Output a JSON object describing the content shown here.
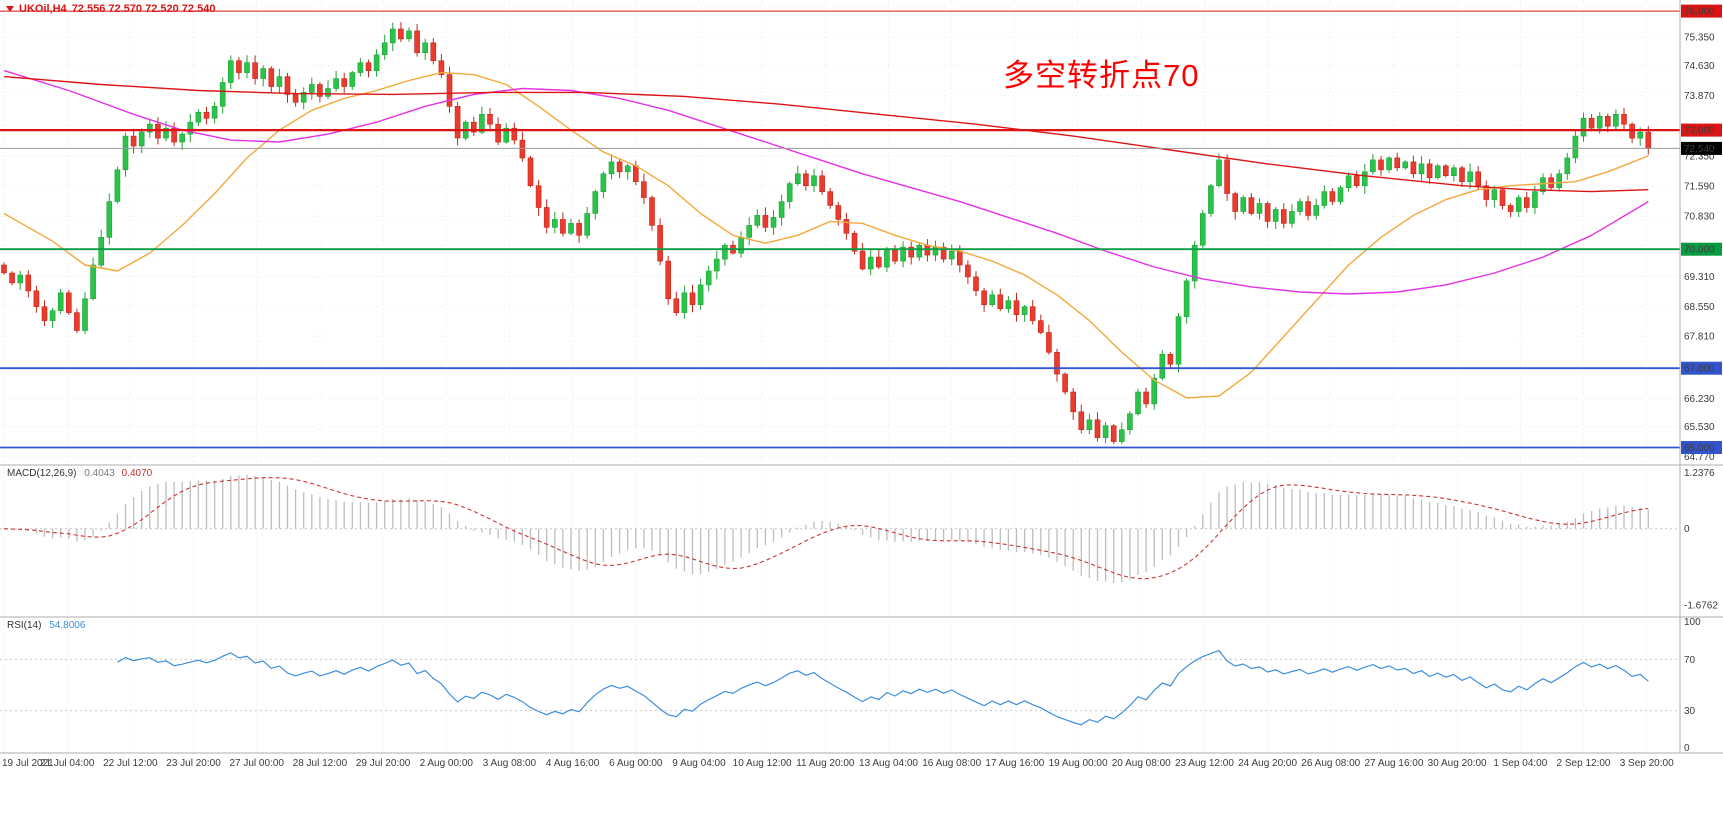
{
  "symbol_bar": {
    "symbol": "UKOil,H4",
    "ohlc": "72.556 72.570 72.520 72.540"
  },
  "annotation": {
    "text": "多空转折点70",
    "color": "#FF0000"
  },
  "colors": {
    "up": "#1fa33a",
    "up_fill": "#2bc34a",
    "down": "#c2271c",
    "down_fill": "#ea3b2e",
    "ma_fast": "#f2a93b",
    "ma_mid": "#e531e5",
    "ma_slow": "#dc1414",
    "grid": "#ebebeb",
    "panel_border": "#aeaeae",
    "macd_hist": "#bdbdbd",
    "macd_signal": "#cc3333",
    "rsi_line": "#3e8ede",
    "price_line": "#9a9a9a",
    "axis_text": "#3c3c3c",
    "badge_text": "#ffffff"
  },
  "price_scale": {
    "ticks": [
      "75.350",
      "74.630",
      "73.870",
      "72.350",
      "71.590",
      "70.830",
      "69.310",
      "68.550",
      "67.810",
      "66.230",
      "65.530",
      "64.770"
    ],
    "badges": [
      {
        "label": "76.000",
        "value": 76.0,
        "bg": "#dc1414"
      },
      {
        "label": "73.000",
        "value": 73.0,
        "bg": "#dc1414"
      },
      {
        "label": "70.000",
        "value": 70.0,
        "bg": "#089b42"
      },
      {
        "label": "67.000",
        "value": 67.0,
        "bg": "#3355cc"
      },
      {
        "label": "65.000",
        "value": 65.0,
        "bg": "#3355cc"
      }
    ],
    "current": {
      "label": "72.540",
      "value": 72.54,
      "bg": "#000000"
    }
  },
  "chart_data": {
    "type": "candlestick",
    "title": "UKOil H4 candlestick chart with MACD and RSI",
    "symbol": "UKOil",
    "timeframe": "H4",
    "y_range": [
      64.56,
      76.28
    ],
    "grid_values": [
      76.11,
      75.35,
      74.63,
      73.87,
      73.11,
      72.35,
      71.59,
      70.83,
      70.07,
      69.31,
      68.55,
      67.81,
      67.05,
      66.23,
      65.53,
      64.77
    ],
    "first_open": 69.6,
    "closes": [
      69.4,
      69.15,
      69.35,
      68.95,
      68.55,
      68.2,
      68.45,
      68.9,
      68.4,
      67.95,
      68.75,
      69.6,
      70.3,
      71.2,
      72.0,
      72.85,
      72.6,
      72.95,
      73.15,
      72.8,
      73.05,
      72.7,
      72.9,
      73.2,
      73.45,
      73.3,
      73.6,
      74.2,
      74.75,
      74.45,
      74.7,
      74.3,
      74.55,
      74.1,
      74.35,
      73.9,
      73.7,
      73.95,
      74.15,
      73.85,
      74.05,
      74.3,
      74.1,
      74.45,
      74.7,
      74.5,
      74.9,
      75.2,
      75.55,
      75.3,
      75.5,
      74.95,
      75.2,
      74.75,
      74.4,
      73.6,
      72.8,
      73.2,
      72.95,
      73.4,
      73.15,
      72.7,
      73.05,
      72.75,
      72.3,
      71.6,
      71.05,
      70.55,
      70.75,
      70.4,
      70.65,
      70.35,
      70.9,
      71.45,
      71.9,
      72.2,
      71.95,
      72.1,
      71.7,
      71.3,
      70.6,
      69.7,
      68.75,
      68.4,
      68.9,
      68.6,
      69.1,
      69.45,
      69.75,
      70.1,
      69.9,
      70.3,
      70.6,
      70.85,
      70.55,
      70.8,
      71.2,
      71.65,
      71.9,
      71.6,
      71.85,
      71.45,
      71.1,
      70.75,
      70.4,
      69.95,
      69.5,
      69.8,
      69.55,
      70.0,
      69.7,
      70.05,
      69.8,
      70.1,
      69.85,
      70.05,
      69.75,
      69.95,
      69.6,
      69.3,
      68.95,
      68.6,
      68.85,
      68.5,
      68.7,
      68.35,
      68.55,
      68.2,
      67.9,
      67.4,
      66.85,
      66.4,
      65.9,
      65.45,
      65.7,
      65.25,
      65.55,
      65.15,
      65.45,
      65.85,
      66.4,
      66.1,
      66.75,
      67.35,
      67.1,
      68.3,
      69.2,
      70.1,
      70.9,
      71.6,
      72.25,
      71.4,
      70.95,
      71.3,
      70.9,
      71.15,
      70.7,
      71.0,
      70.65,
      70.95,
      71.2,
      70.85,
      71.1,
      71.45,
      71.2,
      71.55,
      71.85,
      71.6,
      71.95,
      72.25,
      72.0,
      72.3,
      72.05,
      72.2,
      71.9,
      72.15,
      71.8,
      72.1,
      71.85,
      72.05,
      71.7,
      71.95,
      71.6,
      71.25,
      71.5,
      71.1,
      70.95,
      71.3,
      71.05,
      71.45,
      71.8,
      71.55,
      71.9,
      72.3,
      72.85,
      73.3,
      73.05,
      73.35,
      73.1,
      73.4,
      73.15,
      72.8,
      72.95,
      72.54
    ],
    "hlines": [
      {
        "value": 76.0,
        "color": "#dc1414",
        "width": 1
      },
      {
        "value": 73.0,
        "color": "#dc1414",
        "width": 2.2
      },
      {
        "value": 70.0,
        "color": "#089b42",
        "width": 1.8
      },
      {
        "value": 67.0,
        "color": "#3355cc",
        "width": 1.8
      },
      {
        "value": 65.0,
        "color": "#3355cc",
        "width": 1.8
      }
    ],
    "overlays": [
      {
        "name": "ma-fast",
        "color_key": "ma_fast",
        "points": [
          [
            0,
            70.9
          ],
          [
            6,
            70.2
          ],
          [
            10,
            69.6
          ],
          [
            14,
            69.45
          ],
          [
            18,
            69.9
          ],
          [
            22,
            70.6
          ],
          [
            26,
            71.4
          ],
          [
            30,
            72.3
          ],
          [
            34,
            73.0
          ],
          [
            38,
            73.5
          ],
          [
            42,
            73.8
          ],
          [
            46,
            74.0
          ],
          [
            50,
            74.25
          ],
          [
            54,
            74.45
          ],
          [
            58,
            74.4
          ],
          [
            62,
            74.15
          ],
          [
            66,
            73.6
          ],
          [
            70,
            73.0
          ],
          [
            74,
            72.45
          ],
          [
            78,
            72.1
          ],
          [
            82,
            71.6
          ],
          [
            86,
            70.9
          ],
          [
            90,
            70.35
          ],
          [
            94,
            70.15
          ],
          [
            98,
            70.35
          ],
          [
            102,
            70.7
          ],
          [
            106,
            70.65
          ],
          [
            110,
            70.35
          ],
          [
            114,
            70.1
          ],
          [
            118,
            69.95
          ],
          [
            122,
            69.7
          ],
          [
            126,
            69.35
          ],
          [
            130,
            68.85
          ],
          [
            134,
            68.2
          ],
          [
            138,
            67.4
          ],
          [
            142,
            66.7
          ],
          [
            146,
            66.25
          ],
          [
            150,
            66.3
          ],
          [
            154,
            66.9
          ],
          [
            158,
            67.8
          ],
          [
            162,
            68.7
          ],
          [
            166,
            69.6
          ],
          [
            170,
            70.3
          ],
          [
            174,
            70.85
          ],
          [
            178,
            71.25
          ],
          [
            182,
            71.5
          ],
          [
            186,
            71.6
          ],
          [
            190,
            71.65
          ],
          [
            194,
            71.7
          ],
          [
            198,
            71.95
          ],
          [
            203,
            72.35
          ]
        ]
      },
      {
        "name": "ma-mid",
        "color_key": "ma_mid",
        "points": [
          [
            0,
            74.5
          ],
          [
            8,
            74.0
          ],
          [
            16,
            73.4
          ],
          [
            22,
            73.0
          ],
          [
            28,
            72.75
          ],
          [
            34,
            72.7
          ],
          [
            40,
            72.9
          ],
          [
            46,
            73.2
          ],
          [
            52,
            73.6
          ],
          [
            58,
            73.9
          ],
          [
            64,
            74.05
          ],
          [
            70,
            74.0
          ],
          [
            76,
            73.8
          ],
          [
            82,
            73.5
          ],
          [
            88,
            73.1
          ],
          [
            94,
            72.7
          ],
          [
            100,
            72.3
          ],
          [
            106,
            71.9
          ],
          [
            112,
            71.55
          ],
          [
            118,
            71.2
          ],
          [
            124,
            70.8
          ],
          [
            130,
            70.4
          ],
          [
            136,
            69.95
          ],
          [
            142,
            69.55
          ],
          [
            148,
            69.25
          ],
          [
            154,
            69.05
          ],
          [
            160,
            68.92
          ],
          [
            166,
            68.87
          ],
          [
            172,
            68.92
          ],
          [
            178,
            69.1
          ],
          [
            184,
            69.4
          ],
          [
            190,
            69.8
          ],
          [
            196,
            70.35
          ],
          [
            203,
            71.2
          ]
        ]
      },
      {
        "name": "ma-slow",
        "color_key": "ma_slow",
        "points": [
          [
            0,
            74.35
          ],
          [
            12,
            74.15
          ],
          [
            24,
            74.0
          ],
          [
            36,
            73.92
          ],
          [
            48,
            73.9
          ],
          [
            60,
            73.95
          ],
          [
            72,
            73.95
          ],
          [
            84,
            73.85
          ],
          [
            96,
            73.65
          ],
          [
            108,
            73.4
          ],
          [
            120,
            73.15
          ],
          [
            132,
            72.85
          ],
          [
            144,
            72.5
          ],
          [
            156,
            72.15
          ],
          [
            168,
            71.85
          ],
          [
            180,
            71.6
          ],
          [
            188,
            71.5
          ],
          [
            196,
            71.45
          ],
          [
            203,
            71.5
          ]
        ]
      }
    ],
    "x_labels": [
      "19 Jul 2021",
      "21 Jul 04:00",
      "22 Jul 12:00",
      "23 Jul 20:00",
      "27 Jul 00:00",
      "28 Jul 12:00",
      "29 Jul 20:00",
      "2 Aug 00:00",
      "3 Aug 08:00",
      "4 Aug 16:00",
      "6 Aug 00:00",
      "9 Aug 04:00",
      "10 Aug 12:00",
      "11 Aug 20:00",
      "13 Aug 04:00",
      "16 Aug 08:00",
      "17 Aug 16:00",
      "19 Aug 00:00",
      "20 Aug 08:00",
      "23 Aug 12:00",
      "24 Aug 20:00",
      "26 Aug 08:00",
      "27 Aug 16:00",
      "30 Aug 20:00",
      "1 Sep 04:00",
      "2 Sep 12:00",
      "3 Sep 20:00"
    ]
  },
  "macd_panel": {
    "name": "MACD(12,26,9)",
    "value1": "0.4043",
    "value2": "0.4070",
    "fast": 12,
    "slow": 26,
    "signal": 9,
    "scale_top": "1.2376",
    "scale_zero": "0",
    "scale_bottom": "-1.6762",
    "scale_top_v": 1.2376,
    "scale_bottom_v": -1.6762
  },
  "rsi_panel": {
    "name": "RSI(14)",
    "value": "54.8006",
    "period": 14,
    "levels": [
      {
        "label": "100",
        "v": 100,
        "dotted": false
      },
      {
        "label": "70",
        "v": 70,
        "dotted": true
      },
      {
        "label": "30",
        "v": 30,
        "dotted": true
      },
      {
        "label": "0",
        "v": 0,
        "dotted": false
      }
    ]
  },
  "time_axis": {
    "labels": [
      "19 Jul 2021",
      "21 Jul 04:00",
      "22 Jul 12:00",
      "23 Jul 20:00",
      "27 Jul 00:00",
      "28 Jul 12:00",
      "29 Jul 20:00",
      "2 Aug 00:00",
      "3 Aug 08:00",
      "4 Aug 16:00",
      "6 Aug 00:00",
      "9 Aug 04:00",
      "10 Aug 12:00",
      "11 Aug 20:00",
      "13 Aug 04:00",
      "16 Aug 08:00",
      "17 Aug 16:00",
      "19 Aug 00:00",
      "20 Aug 08:00",
      "23 Aug 12:00",
      "24 Aug 20:00",
      "26 Aug 08:00",
      "27 Aug 16:00",
      "30 Aug 20:00",
      "1 Sep 04:00",
      "2 Sep 12:00",
      "3 Sep 20:00"
    ]
  }
}
